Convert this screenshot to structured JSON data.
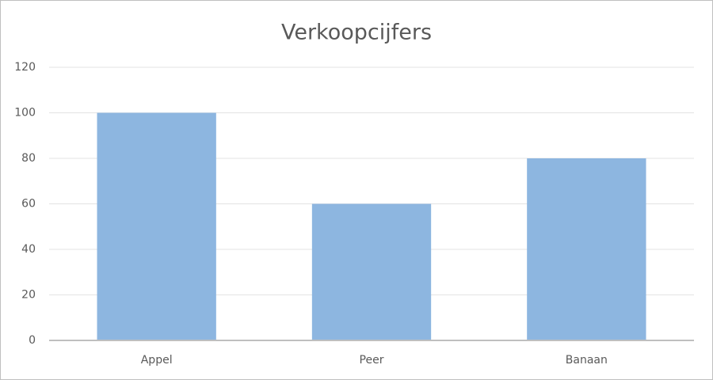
{
  "chart_data": {
    "type": "bar",
    "title": "Verkoopcijfers",
    "categories": [
      "Appel",
      "Peer",
      "Banaan"
    ],
    "values": [
      100,
      60,
      80
    ],
    "color": "#8db6e0",
    "ylim": [
      0,
      120
    ],
    "yticks": [
      0,
      20,
      40,
      60,
      80,
      100,
      120
    ],
    "grid": true
  }
}
